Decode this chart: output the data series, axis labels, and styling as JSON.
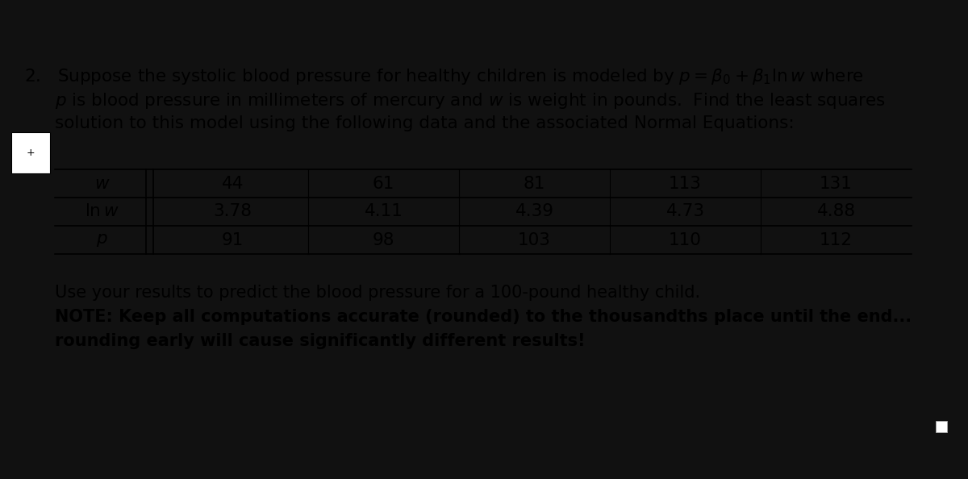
{
  "bg_color": "#111111",
  "content_bg": "#ffffff",
  "row_labels": [
    "$w$",
    "$\\ln w$",
    "$p$"
  ],
  "col_values": [
    [
      "44",
      "61",
      "81",
      "113",
      "131"
    ],
    [
      "3.78",
      "4.11",
      "4.39",
      "4.73",
      "4.88"
    ],
    [
      "91",
      "98",
      "103",
      "110",
      "112"
    ]
  ],
  "font_size_main": 15.5,
  "font_size_table": 15.5,
  "font_size_note": 15.0
}
